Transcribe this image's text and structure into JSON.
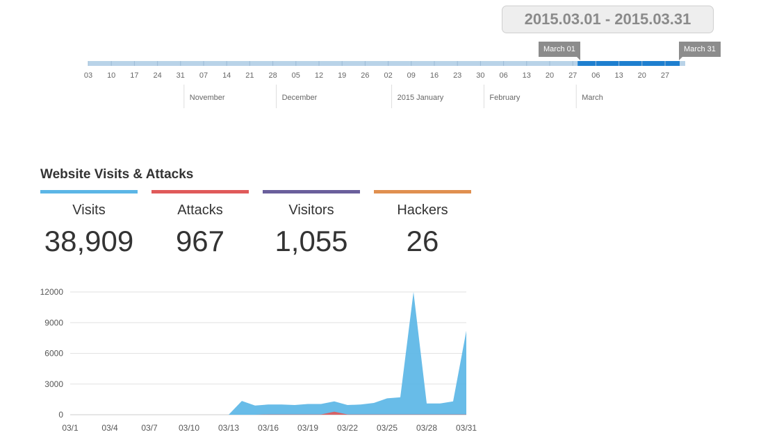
{
  "date_range": "2015.03.01 - 2015.03.31",
  "timeline": {
    "start_flag": "March 01",
    "end_flag": "March 31",
    "day_ticks": [
      "03",
      "10",
      "17",
      "24",
      "31",
      "07",
      "14",
      "21",
      "28",
      "05",
      "12",
      "19",
      "26",
      "02",
      "09",
      "16",
      "23",
      "30",
      "06",
      "13",
      "20",
      "27",
      "06",
      "13",
      "20",
      "27"
    ],
    "months": [
      "November",
      "December",
      "2015 January",
      "February",
      "March"
    ],
    "selected_start_index": 21,
    "colors": {
      "track": "#b9d3e8",
      "selected": "#1e7fcf",
      "tick": "#9cbbd6"
    }
  },
  "stats": [
    {
      "label": "Visits",
      "value": "38,909",
      "color": "#5bb6e6"
    },
    {
      "label": "Attacks",
      "value": "967",
      "color": "#e05a5a"
    },
    {
      "label": "Visitors",
      "value": "1,055",
      "color": "#6a5f9c"
    },
    {
      "label": "Hackers",
      "value": "26",
      "color": "#e09050"
    }
  ],
  "chart_data": {
    "type": "area",
    "title": "Website Visits & Attacks",
    "x": [
      "03/1",
      "03/2",
      "03/3",
      "03/4",
      "03/5",
      "03/6",
      "03/7",
      "03/8",
      "03/9",
      "03/10",
      "03/11",
      "03/12",
      "03/13",
      "03/14",
      "03/15",
      "03/16",
      "03/17",
      "03/18",
      "03/19",
      "03/20",
      "03/21",
      "03/22",
      "03/23",
      "03/24",
      "03/25",
      "03/26",
      "03/27",
      "03/28",
      "03/29",
      "03/30",
      "03/31"
    ],
    "x_tick_labels": [
      "03/1",
      "03/4",
      "03/7",
      "03/10",
      "03/13",
      "03/16",
      "03/19",
      "03/22",
      "03/25",
      "03/28",
      "03/31"
    ],
    "ylim": [
      0,
      12000
    ],
    "y_ticks": [
      "0",
      "3000",
      "6000",
      "9000",
      "12000"
    ],
    "grid": true,
    "series": [
      {
        "name": "Visits",
        "color": "#5bb6e6",
        "values": [
          0,
          0,
          0,
          0,
          0,
          0,
          0,
          0,
          0,
          0,
          0,
          0,
          0,
          1350,
          900,
          1000,
          1000,
          950,
          1050,
          1050,
          1300,
          950,
          1000,
          1150,
          1600,
          1700,
          12000,
          1100,
          1100,
          1300,
          8200
        ]
      },
      {
        "name": "Attacks",
        "color": "#e05a5a",
        "values": [
          0,
          0,
          0,
          0,
          0,
          0,
          0,
          0,
          0,
          0,
          0,
          0,
          0,
          0,
          0,
          30,
          30,
          30,
          30,
          30,
          300,
          30,
          30,
          30,
          30,
          30,
          30,
          30,
          30,
          30,
          30
        ]
      }
    ]
  }
}
